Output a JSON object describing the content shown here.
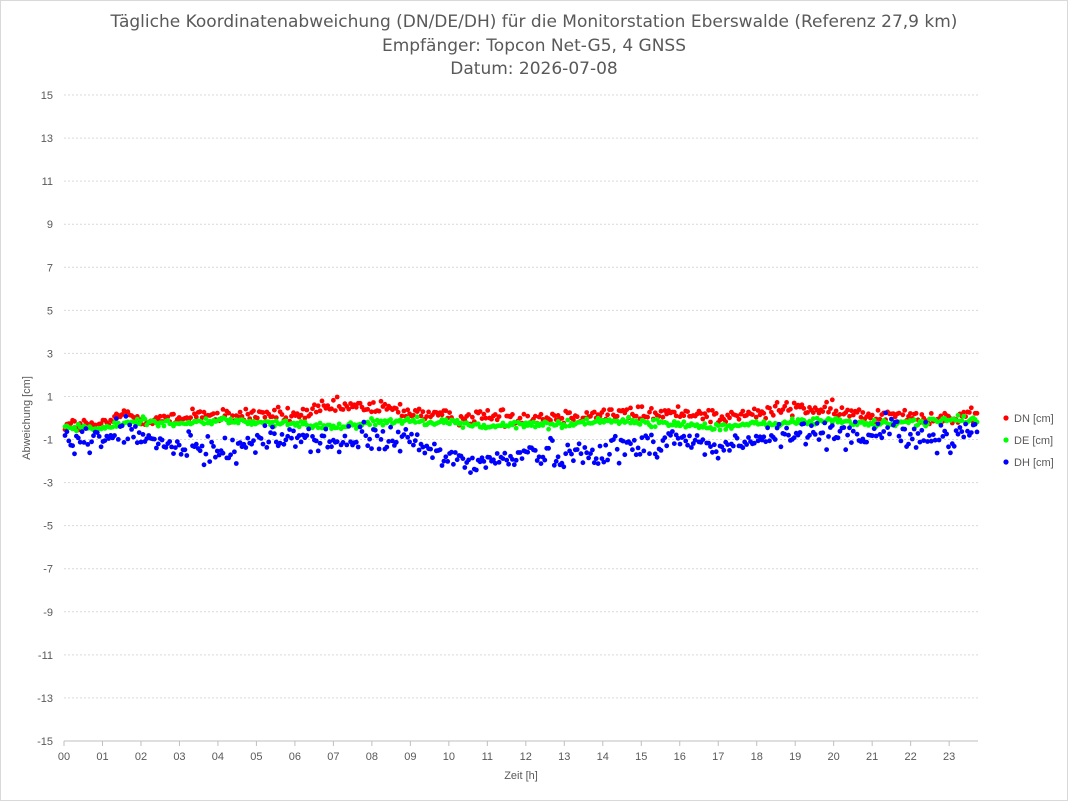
{
  "chart_data": {
    "type": "scatter",
    "title": "Tägliche Koordinatenabweichung (DN/DE/DH) für die Monitorstation Eberswalde (Referenz 27,9 km)",
    "subtitle": "Empfänger: Topcon Net-G5, 4 GNSS",
    "date_line": "Datum: 2026-07-08",
    "xlabel": "Zeit [h]",
    "ylabel": "Abweichung [cm]",
    "xlim": [
      0,
      23.75
    ],
    "ylim": [
      -15,
      15
    ],
    "x_ticks": [
      "00",
      "01",
      "02",
      "03",
      "04",
      "05",
      "06",
      "07",
      "08",
      "09",
      "10",
      "11",
      "12",
      "13",
      "14",
      "15",
      "16",
      "17",
      "18",
      "19",
      "20",
      "21",
      "22",
      "23"
    ],
    "y_ticks": [
      15,
      13,
      11,
      9,
      7,
      5,
      3,
      1,
      -1,
      -3,
      -5,
      -7,
      -9,
      -11,
      -13,
      -15
    ],
    "grid": true,
    "legend_position": "right",
    "points_per_series": 480,
    "series": [
      {
        "name": "DN [cm]",
        "color": "#ff0000",
        "trend": [
          [
            0,
            -0.3
          ],
          [
            1,
            -0.4
          ],
          [
            1.5,
            0.2
          ],
          [
            2,
            0
          ],
          [
            3,
            -0.1
          ],
          [
            3.5,
            0.3
          ],
          [
            4,
            0
          ],
          [
            5,
            0.2
          ],
          [
            6,
            0.1
          ],
          [
            7,
            0.5
          ],
          [
            8,
            0.5
          ],
          [
            9,
            0.3
          ],
          [
            10,
            0
          ],
          [
            11,
            0.1
          ],
          [
            12,
            0
          ],
          [
            13,
            0.1
          ],
          [
            14,
            0.2
          ],
          [
            15,
            0.2
          ],
          [
            16,
            0.2
          ],
          [
            16.5,
            0.3
          ],
          [
            17,
            0
          ],
          [
            18,
            0.2
          ],
          [
            19,
            0.5
          ],
          [
            20,
            0.3
          ],
          [
            21,
            0.1
          ],
          [
            21.7,
            0.3
          ],
          [
            22,
            0.1
          ],
          [
            23,
            0
          ],
          [
            23.75,
            0
          ]
        ],
        "noise": 0.25
      },
      {
        "name": "DE [cm]",
        "color": "#00ff00",
        "trend": [
          [
            0,
            -0.4
          ],
          [
            1,
            -0.5
          ],
          [
            2,
            -0.1
          ],
          [
            3,
            -0.3
          ],
          [
            4,
            -0.1
          ],
          [
            5,
            -0.2
          ],
          [
            6,
            -0.3
          ],
          [
            7,
            -0.4
          ],
          [
            8,
            -0.2
          ],
          [
            9,
            -0.1
          ],
          [
            10,
            -0.2
          ],
          [
            11,
            -0.4
          ],
          [
            12,
            -0.3
          ],
          [
            13,
            -0.3
          ],
          [
            14,
            -0.1
          ],
          [
            15,
            -0.2
          ],
          [
            16,
            -0.3
          ],
          [
            17,
            -0.4
          ],
          [
            18,
            -0.3
          ],
          [
            19,
            -0.2
          ],
          [
            20,
            -0.1
          ],
          [
            21,
            -0.3
          ],
          [
            22,
            -0.2
          ],
          [
            23,
            -0.1
          ],
          [
            23.75,
            -0.1
          ]
        ],
        "noise": 0.12
      },
      {
        "name": "DH [cm]",
        "color": "#0000ff",
        "trend": [
          [
            0,
            -0.9
          ],
          [
            1,
            -1.1
          ],
          [
            1.5,
            -0.4
          ],
          [
            2,
            -1.0
          ],
          [
            3,
            -1.4
          ],
          [
            4,
            -1.5
          ],
          [
            5,
            -1.1
          ],
          [
            6,
            -0.8
          ],
          [
            7,
            -1.2
          ],
          [
            8,
            -0.9
          ],
          [
            9,
            -1.1
          ],
          [
            10,
            -1.9
          ],
          [
            11,
            -2.1
          ],
          [
            12,
            -1.6
          ],
          [
            13,
            -1.7
          ],
          [
            14,
            -1.5
          ],
          [
            15,
            -1.3
          ],
          [
            16,
            -0.9
          ],
          [
            17,
            -1.5
          ],
          [
            18,
            -1.0
          ],
          [
            19,
            -0.8
          ],
          [
            20,
            -0.6
          ],
          [
            21,
            -0.8
          ],
          [
            21.6,
            -0.2
          ],
          [
            22,
            -1.2
          ],
          [
            22.5,
            -0.9
          ],
          [
            23,
            -1.1
          ],
          [
            23.75,
            -0.3
          ]
        ],
        "noise": 0.45
      }
    ]
  }
}
